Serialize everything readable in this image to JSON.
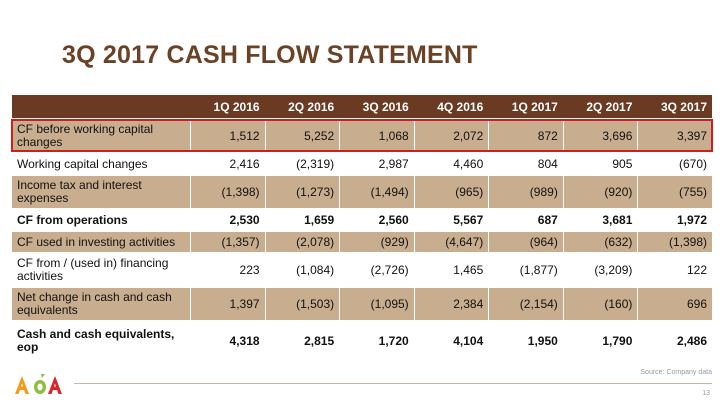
{
  "title": "3Q 2017 CASH FLOW STATEMENT",
  "columns": [
    "1Q 2016",
    "2Q 2016",
    "3Q 2016",
    "4Q 2016",
    "1Q 2017",
    "2Q 2017",
    "3Q 2017"
  ],
  "rows": [
    {
      "label": "CF before working capital changes",
      "values": [
        "1,512",
        "5,252",
        "1,068",
        "2,072",
        "872",
        "3,696",
        "3,397"
      ]
    },
    {
      "label": "Working capital changes",
      "values": [
        "2,416",
        "(2,319)",
        "2,987",
        "4,460",
        "804",
        "905",
        "(670)"
      ]
    },
    {
      "label": "Income tax and interest expenses",
      "values": [
        "(1,398)",
        "(1,273)",
        "(1,494)",
        "(965)",
        "(989)",
        "(920)",
        "(755)"
      ]
    },
    {
      "label": "CF from operations",
      "values": [
        "2,530",
        "1,659",
        "2,560",
        "5,567",
        "687",
        "3,681",
        "1,972"
      ]
    },
    {
      "label": "CF used in investing activities",
      "values": [
        "(1,357)",
        "(2,078)",
        "(929)",
        "(4,647)",
        "(964)",
        "(632)",
        "(1,398)"
      ]
    },
    {
      "label": "CF from / (used in) financing activities",
      "values": [
        "223",
        "(1,084)",
        "(2,726)",
        "1,465",
        "(1,877)",
        "(3,209)",
        "122"
      ]
    },
    {
      "label": "Net change in cash and cash equivalents",
      "values": [
        "1,397",
        "(1,503)",
        "(1,095)",
        "2,384",
        "(2,154)",
        "(160)",
        "696"
      ]
    },
    {
      "label": "Cash and cash equivalents, eop",
      "values": [
        "4,318",
        "2,815",
        "1,720",
        "4,104",
        "1,950",
        "1,790",
        "2,486"
      ]
    }
  ],
  "source": "Source: Company data",
  "page_number": "13",
  "colors": {
    "brand_brown": "#6b3a22",
    "shade": "#c9ad8f",
    "highlight": "#d21d1d",
    "logo_orange": "#f29b1d",
    "logo_green": "#8bbf3f",
    "logo_red": "#d8262b"
  }
}
